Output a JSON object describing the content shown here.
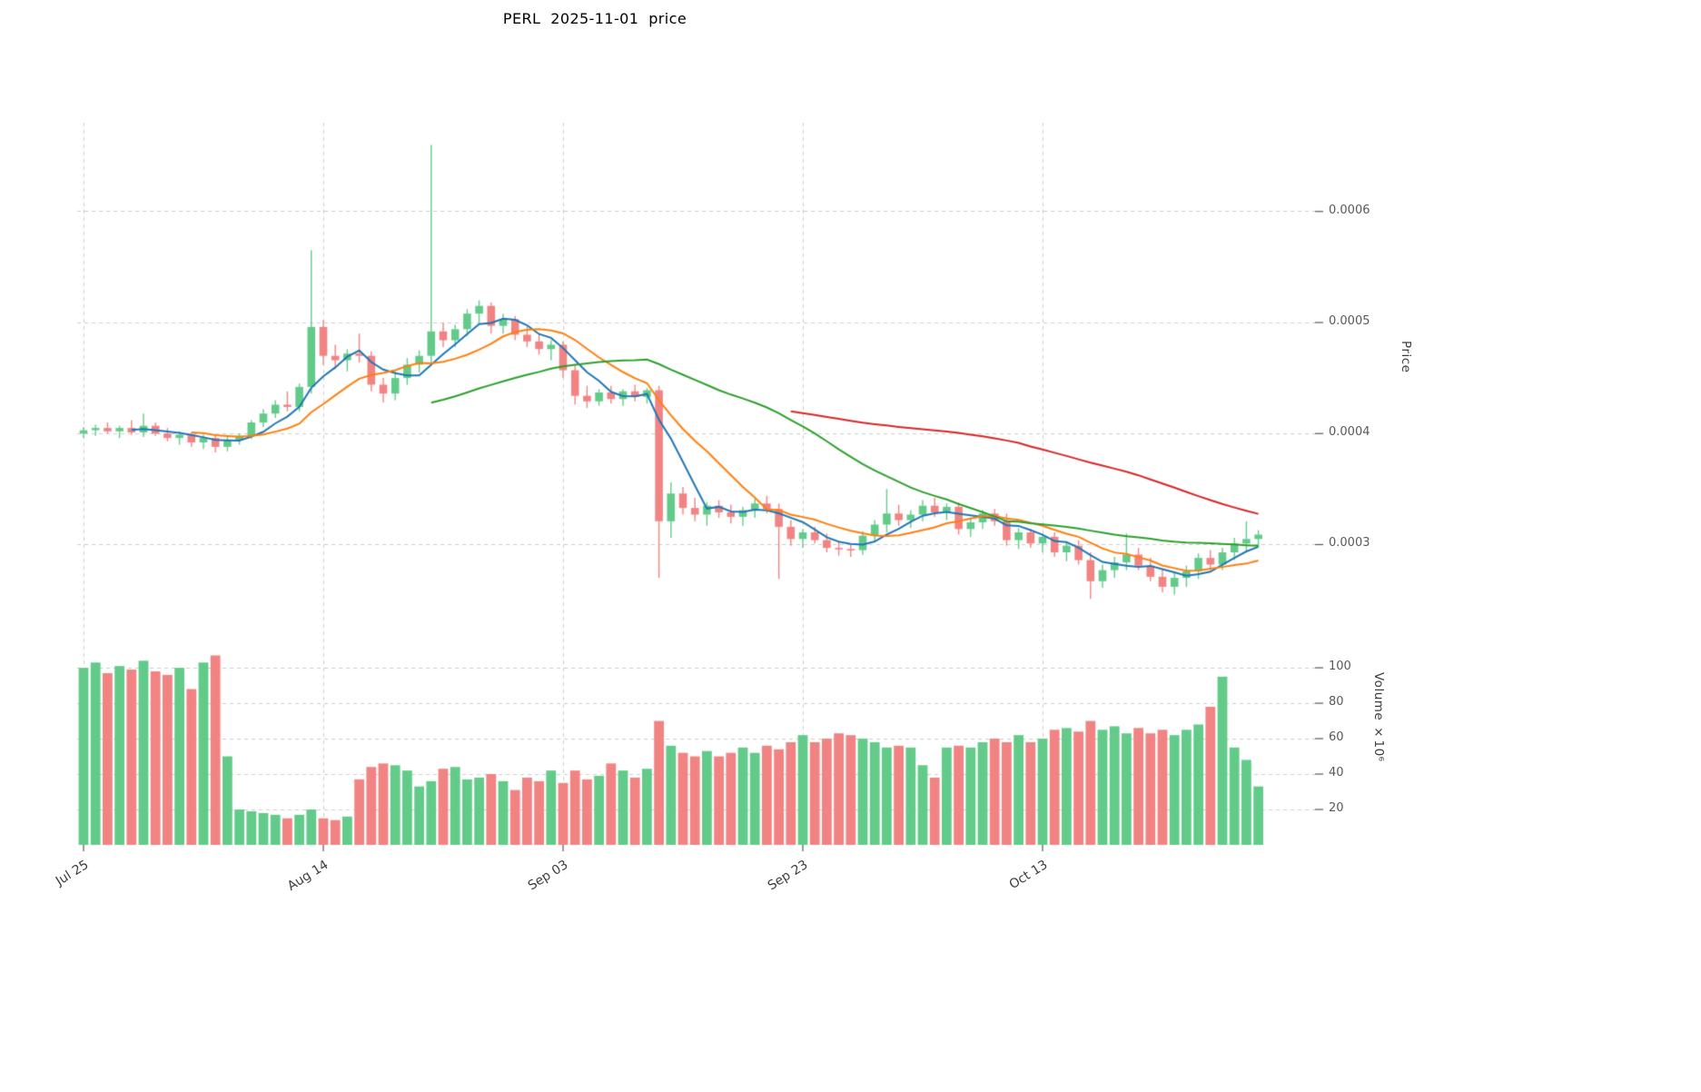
{
  "title": "PERL  2025-11-01  price",
  "chart_data": {
    "type": "candlestick",
    "title": "PERL  2025-11-01  price",
    "price_unit": 1e-06,
    "grid": true,
    "legend_position": "none",
    "price_axis": {
      "label": "Price",
      "side": "right",
      "ticks": [
        0.0003,
        0.0004,
        0.0005,
        0.0006
      ],
      "tick_labels": [
        "0.0003",
        "0.0004",
        "0.0005",
        "0.0006"
      ],
      "ylim": [
        0.00023,
        0.00068
      ]
    },
    "volume_axis": {
      "label": "Volume ×10⁶",
      "side": "right",
      "ticks": [
        20,
        40,
        60,
        80,
        100
      ],
      "tick_labels": [
        "20",
        "40",
        "60",
        "80",
        "100"
      ],
      "ylim": [
        0,
        118
      ]
    },
    "x_ticks": [
      {
        "index": 0,
        "label": "Jul 25"
      },
      {
        "index": 20,
        "label": "Aug 14"
      },
      {
        "index": 40,
        "label": "Sep 03"
      },
      {
        "index": 60,
        "label": "Sep 23"
      },
      {
        "index": 80,
        "label": "Oct 13"
      }
    ],
    "colors": {
      "up": "#63cb89",
      "down": "#f28383",
      "grid": "#cccccc",
      "tick_mark": "#555555",
      "text": "#595959",
      "ma_fast": "#1f77b4",
      "ma_mid": "#ff7f0e",
      "ma_slow": "#2ca02c",
      "ma_long": "#d62728"
    },
    "moving_averages": [
      {
        "window": 5,
        "color": "#1f77b4"
      },
      {
        "window": 10,
        "color": "#ff7f0e"
      },
      {
        "window": 30,
        "color": "#2ca02c"
      },
      {
        "window": 60,
        "color": "#d62728"
      }
    ],
    "ohlc": [
      [
        400,
        406,
        396,
        403
      ],
      [
        403,
        408,
        398,
        405
      ],
      [
        405,
        410,
        400,
        402
      ],
      [
        402,
        407,
        396,
        405
      ],
      [
        405,
        412,
        399,
        401
      ],
      [
        401,
        418,
        397,
        407
      ],
      [
        407,
        410,
        398,
        400
      ],
      [
        400,
        405,
        393,
        396
      ],
      [
        396,
        402,
        390,
        399
      ],
      [
        399,
        401,
        388,
        392
      ],
      [
        392,
        399,
        386,
        396
      ],
      [
        396,
        398,
        383,
        388
      ],
      [
        388,
        397,
        384,
        394
      ],
      [
        394,
        400,
        390,
        398
      ],
      [
        398,
        412,
        395,
        410
      ],
      [
        410,
        422,
        406,
        418
      ],
      [
        418,
        430,
        414,
        426
      ],
      [
        426,
        438,
        420,
        424
      ],
      [
        424,
        445,
        420,
        442
      ],
      [
        442,
        565,
        436,
        496
      ],
      [
        496,
        502,
        462,
        470
      ],
      [
        470,
        480,
        458,
        466
      ],
      [
        466,
        476,
        456,
        472
      ],
      [
        472,
        490,
        464,
        470
      ],
      [
        470,
        474,
        438,
        444
      ],
      [
        444,
        450,
        428,
        436
      ],
      [
        436,
        456,
        430,
        450
      ],
      [
        450,
        468,
        444,
        462
      ],
      [
        462,
        475,
        455,
        470
      ],
      [
        470,
        660,
        462,
        492
      ],
      [
        492,
        500,
        478,
        484
      ],
      [
        484,
        498,
        478,
        494
      ],
      [
        494,
        512,
        488,
        508
      ],
      [
        508,
        520,
        500,
        515
      ],
      [
        515,
        518,
        490,
        497
      ],
      [
        497,
        508,
        490,
        503
      ],
      [
        503,
        506,
        484,
        489
      ],
      [
        489,
        496,
        478,
        483
      ],
      [
        483,
        490,
        471,
        476
      ],
      [
        476,
        484,
        466,
        480
      ],
      [
        480,
        483,
        450,
        457
      ],
      [
        457,
        462,
        426,
        434
      ],
      [
        434,
        443,
        423,
        429
      ],
      [
        429,
        440,
        425,
        437
      ],
      [
        437,
        443,
        427,
        431
      ],
      [
        431,
        440,
        425,
        438
      ],
      [
        438,
        444,
        429,
        433
      ],
      [
        433,
        441,
        427,
        439
      ],
      [
        439,
        443,
        270,
        321
      ],
      [
        321,
        356,
        306,
        346
      ],
      [
        346,
        352,
        327,
        333
      ],
      [
        333,
        342,
        321,
        327
      ],
      [
        327,
        338,
        317,
        335
      ],
      [
        335,
        340,
        324,
        329
      ],
      [
        329,
        336,
        319,
        325
      ],
      [
        325,
        334,
        317,
        331
      ],
      [
        331,
        341,
        324,
        337
      ],
      [
        337,
        344,
        328,
        332
      ],
      [
        332,
        337,
        269,
        316
      ],
      [
        316,
        322,
        299,
        305
      ],
      [
        305,
        314,
        297,
        311
      ],
      [
        311,
        316,
        301,
        304
      ],
      [
        304,
        310,
        293,
        297
      ],
      [
        297,
        302,
        290,
        296
      ],
      [
        296,
        300,
        289,
        295
      ],
      [
        295,
        312,
        291,
        308
      ],
      [
        308,
        322,
        302,
        318
      ],
      [
        318,
        350,
        311,
        328
      ],
      [
        328,
        336,
        317,
        322
      ],
      [
        322,
        331,
        315,
        327
      ],
      [
        327,
        340,
        321,
        335
      ],
      [
        335,
        342,
        325,
        329
      ],
      [
        329,
        337,
        322,
        334
      ],
      [
        334,
        338,
        309,
        314
      ],
      [
        314,
        324,
        307,
        320
      ],
      [
        320,
        331,
        314,
        328
      ],
      [
        328,
        332,
        317,
        321
      ],
      [
        321,
        328,
        299,
        304
      ],
      [
        304,
        315,
        296,
        311
      ],
      [
        311,
        314,
        297,
        301
      ],
      [
        301,
        310,
        293,
        307
      ],
      [
        307,
        311,
        289,
        293
      ],
      [
        293,
        303,
        285,
        299
      ],
      [
        299,
        304,
        282,
        286
      ],
      [
        286,
        293,
        251,
        267
      ],
      [
        267,
        282,
        261,
        277
      ],
      [
        277,
        289,
        270,
        284
      ],
      [
        284,
        310,
        277,
        291
      ],
      [
        291,
        297,
        277,
        281
      ],
      [
        281,
        288,
        267,
        271
      ],
      [
        271,
        278,
        257,
        262
      ],
      [
        262,
        275,
        255,
        270
      ],
      [
        270,
        281,
        262,
        276
      ],
      [
        276,
        292,
        269,
        288
      ],
      [
        288,
        295,
        277,
        282
      ],
      [
        282,
        297,
        277,
        293
      ],
      [
        293,
        306,
        286,
        301
      ],
      [
        301,
        321,
        294,
        305
      ],
      [
        305,
        313,
        298,
        309
      ]
    ],
    "volume": [
      100,
      103,
      97,
      101,
      99,
      104,
      98,
      96,
      100,
      88,
      103,
      107,
      50,
      20,
      19,
      18,
      17,
      15,
      17,
      20,
      15,
      14,
      16,
      37,
      44,
      46,
      45,
      42,
      33,
      36,
      43,
      44,
      37,
      38,
      40,
      36,
      31,
      38,
      36,
      42,
      35,
      42,
      37,
      39,
      46,
      42,
      38,
      43,
      70,
      56,
      52,
      50,
      53,
      50,
      52,
      55,
      52,
      56,
      54,
      58,
      62,
      58,
      60,
      63,
      62,
      60,
      58,
      55,
      56,
      55,
      45,
      38,
      55,
      56,
      55,
      58,
      60,
      58,
      62,
      58,
      60,
      65,
      66,
      64,
      70,
      65,
      67,
      63,
      66,
      63,
      65,
      62,
      65,
      68,
      78,
      95,
      55,
      48,
      33
    ]
  }
}
